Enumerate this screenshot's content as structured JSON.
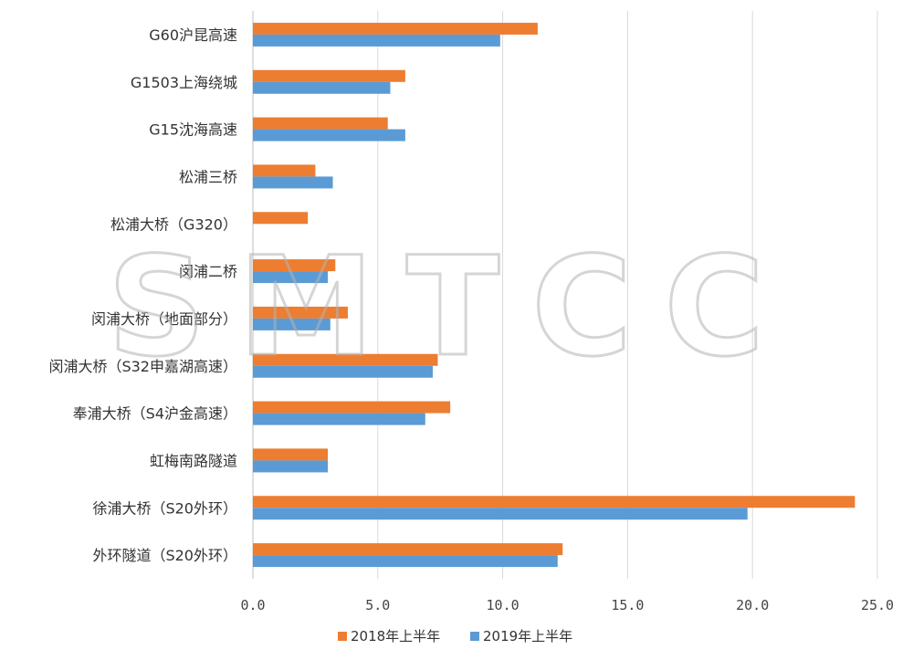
{
  "watermark": "SMTCC",
  "chart_data": {
    "type": "bar",
    "orientation": "horizontal",
    "categories": [
      "G60沪昆高速",
      "G1503上海绕城",
      "G15沈海高速",
      "松浦三桥",
      "松浦大桥（G320）",
      "闵浦二桥",
      "闵浦大桥（地面部分）",
      "闵浦大桥（S32申嘉湖高速）",
      "奉浦大桥（S4沪金高速）",
      "虹梅南路隧道",
      "徐浦大桥（S20外环）",
      "外环隧道（S20外环）"
    ],
    "series": [
      {
        "name": "2018年上半年",
        "color": "#ed7d31",
        "values": [
          11.4,
          6.1,
          5.4,
          2.5,
          2.2,
          3.3,
          3.8,
          7.4,
          7.9,
          3.0,
          24.1,
          12.4
        ]
      },
      {
        "name": "2019年上半年",
        "color": "#5b9bd5",
        "values": [
          9.9,
          5.5,
          6.1,
          3.2,
          null,
          3.0,
          3.1,
          7.2,
          6.9,
          3.0,
          19.8,
          12.2
        ]
      }
    ],
    "xlim": [
      0,
      25
    ],
    "xticks": [
      "0.0",
      "5.0",
      "10.0",
      "15.0",
      "20.0",
      "25.0"
    ],
    "title": "",
    "xlabel": "",
    "ylabel": "",
    "grid": "vertical",
    "legend_position": "bottom"
  }
}
